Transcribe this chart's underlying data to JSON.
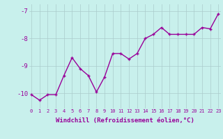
{
  "x": [
    0,
    1,
    2,
    3,
    4,
    5,
    6,
    7,
    8,
    9,
    10,
    11,
    12,
    13,
    14,
    15,
    16,
    17,
    18,
    19,
    20,
    21,
    22,
    23
  ],
  "y": [
    -10.05,
    -10.25,
    -10.05,
    -10.05,
    -9.35,
    -8.7,
    -9.1,
    -9.35,
    -9.95,
    -9.4,
    -8.55,
    -8.55,
    -8.75,
    -8.55,
    -8.0,
    -7.85,
    -7.6,
    -7.85,
    -7.85,
    -7.85,
    -7.85,
    -7.6,
    -7.65,
    -7.1
  ],
  "line_color": "#990099",
  "marker": "+",
  "marker_size": 3.5,
  "marker_linewidth": 1.0,
  "bg_color": "#c8f0ec",
  "grid_color": "#aacccc",
  "xlabel": "Windchill (Refroidissement éolien,°C)",
  "xlabel_color": "#990099",
  "ytick_labels": [
    "-10",
    "-9",
    "-8",
    "-7"
  ],
  "ytick_vals": [
    -10,
    -9,
    -8,
    -7
  ],
  "xtick_vals": [
    0,
    1,
    2,
    3,
    4,
    5,
    6,
    7,
    8,
    9,
    10,
    11,
    12,
    13,
    14,
    15,
    16,
    17,
    18,
    19,
    20,
    21,
    22,
    23
  ],
  "ylim": [
    -10.55,
    -6.75
  ],
  "xlim": [
    -0.3,
    23.3
  ],
  "tick_color": "#990099",
  "linewidth": 1.0,
  "xtick_fontsize": 5.0,
  "ytick_fontsize": 6.5,
  "xlabel_fontsize": 6.5
}
